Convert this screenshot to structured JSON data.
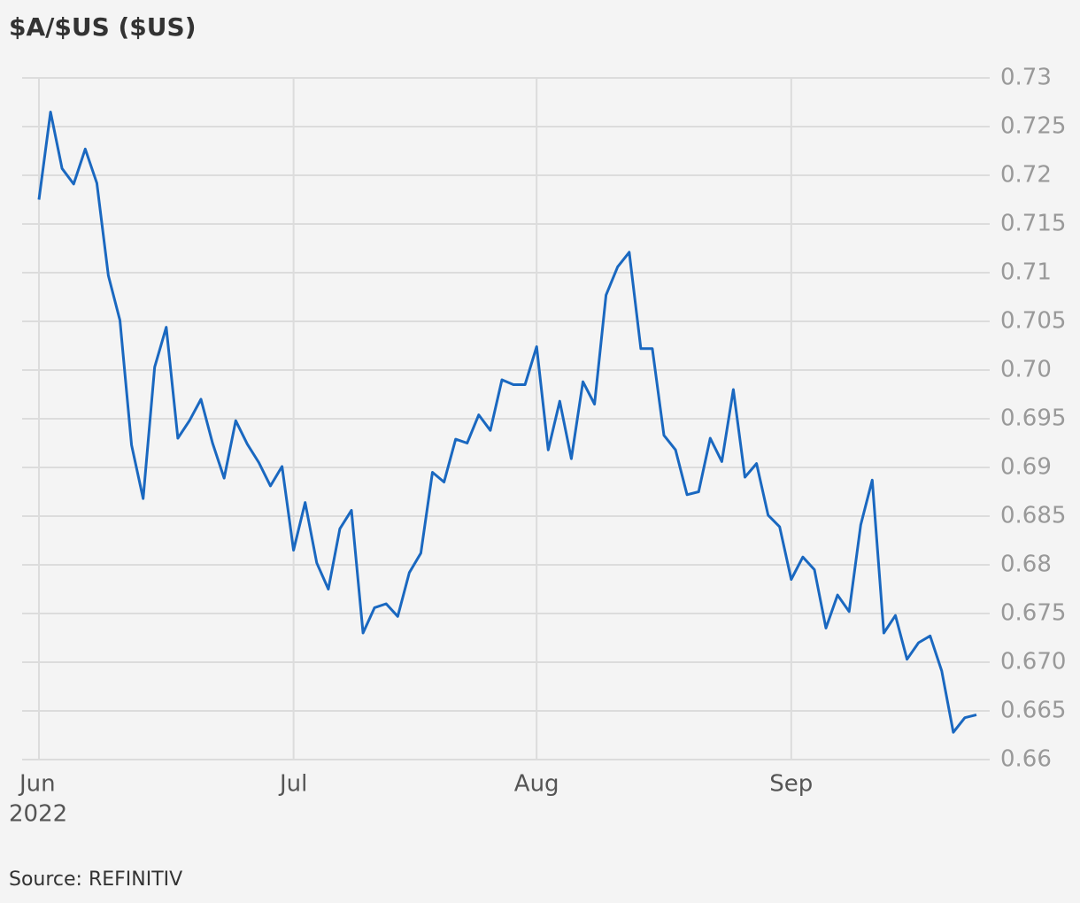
{
  "chart_data": {
    "type": "line",
    "title": "$A/$US ($US)",
    "source": "Source: REFINITIV",
    "categories": [
      "Jun",
      null,
      null,
      null,
      null,
      null,
      null,
      null,
      null,
      null,
      null,
      null,
      null,
      null,
      null,
      null,
      null,
      null,
      null,
      null,
      null,
      null,
      "Jul",
      null,
      null,
      null,
      null,
      null,
      null,
      null,
      null,
      null,
      null,
      null,
      null,
      null,
      null,
      null,
      null,
      null,
      null,
      null,
      null,
      "Aug",
      null,
      null,
      null,
      null,
      null,
      null,
      null,
      null,
      null,
      null,
      null,
      null,
      null,
      null,
      null,
      null,
      null,
      null,
      null,
      null,
      null,
      "Sep",
      null,
      null,
      null,
      null,
      null,
      null,
      null,
      null,
      null,
      null,
      null,
      null,
      null,
      null,
      null,
      null
    ],
    "year_label": "2022",
    "values": [
      0.7175,
      0.7265,
      0.7207,
      0.7191,
      0.7227,
      0.7192,
      0.7097,
      0.7051,
      0.6923,
      0.6868,
      0.7003,
      0.7044,
      0.693,
      0.6948,
      0.697,
      0.6925,
      0.6889,
      0.6948,
      0.6924,
      0.6905,
      0.6881,
      0.6901,
      0.6815,
      0.6864,
      0.6802,
      0.6775,
      0.6837,
      0.6856,
      0.673,
      0.6756,
      0.676,
      0.6747,
      0.6792,
      0.6812,
      0.6895,
      0.6885,
      0.6929,
      0.6925,
      0.6954,
      0.6938,
      0.699,
      0.6985,
      0.6985,
      0.7024,
      0.6918,
      0.6968,
      0.6909,
      0.6988,
      0.6965,
      0.7077,
      0.7106,
      0.7121,
      0.7022,
      0.7022,
      0.6933,
      0.6918,
      0.6872,
      0.6875,
      0.693,
      0.6906,
      0.698,
      0.689,
      0.6904,
      0.6851,
      0.6839,
      0.6785,
      0.6808,
      0.6795,
      0.6735,
      0.6769,
      0.6752,
      0.6841,
      0.6887,
      0.673,
      0.6748,
      0.6703,
      0.672,
      0.6727,
      0.6691,
      0.6628,
      0.6643,
      0.6646
    ],
    "color": "#1a68c0",
    "ylim": [
      0.66,
      0.73
    ],
    "yticks": [
      0.66,
      0.665,
      {
        "value": 0.67,
        "label": "0.670"
      },
      0.675,
      {
        "value": 0.68,
        "label": "0.68"
      },
      0.685,
      {
        "value": 0.69,
        "label": "0.69"
      },
      0.695,
      {
        "value": 0.7,
        "label": "0.70"
      },
      0.705,
      0.71,
      0.715,
      0.72,
      0.725,
      0.73
    ],
    "grid": true
  }
}
